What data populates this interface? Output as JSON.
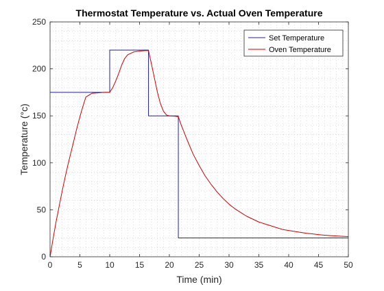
{
  "chart_data": {
    "type": "line",
    "title": "Thermostat Temperature vs. Actual Oven Temperature",
    "xlabel": "Time (min)",
    "ylabel": "Temperature (°c)",
    "xlim": [
      0,
      50
    ],
    "ylim": [
      0,
      250
    ],
    "xticks": [
      0,
      5,
      10,
      15,
      20,
      25,
      30,
      35,
      40,
      45,
      50
    ],
    "yticks": [
      0,
      50,
      100,
      150,
      200,
      250
    ],
    "grid": "minor dotted",
    "legend_position": "top-right",
    "series": [
      {
        "name": "Set Temperature",
        "color": "#1f1fa0",
        "x": [
          0,
          10,
          10,
          16.5,
          16.5,
          21.5,
          21.5,
          50
        ],
        "y": [
          175,
          175,
          220,
          220,
          150,
          150,
          20,
          20
        ]
      },
      {
        "name": "Oven Temperature",
        "color": "#cc0000",
        "x": [
          0,
          0.5,
          1,
          1.5,
          2,
          2.5,
          3,
          3.5,
          4,
          4.5,
          5,
          5.5,
          6,
          7,
          8,
          9,
          10,
          10.5,
          11,
          11.5,
          12,
          12.5,
          13,
          14,
          15,
          16,
          16.5,
          17,
          17.5,
          18,
          18.5,
          19,
          19.5,
          20,
          20.5,
          21,
          21.5,
          22,
          23,
          24,
          25,
          26,
          27,
          28,
          29,
          30,
          31,
          32,
          33,
          34,
          35,
          36,
          37,
          38,
          39,
          40,
          41,
          42,
          43,
          44,
          45,
          46,
          47,
          48,
          49,
          50
        ],
        "y": [
          0,
          19,
          37,
          53,
          69,
          84,
          98,
          111,
          124,
          137,
          149,
          160,
          170,
          174,
          174.5,
          175,
          175,
          180,
          187,
          195,
          204,
          211,
          215,
          218,
          219,
          219.5,
          219.5,
          205,
          190,
          175,
          163,
          155,
          151,
          150,
          149.8,
          149.6,
          149,
          140,
          124,
          109,
          97,
          86,
          77,
          69,
          62,
          56,
          51,
          47,
          43,
          40,
          37,
          35,
          33,
          31,
          29,
          28,
          27,
          26,
          25,
          24.3,
          23.6,
          23,
          22.5,
          22.1,
          21.8,
          21.5
        ]
      }
    ]
  }
}
